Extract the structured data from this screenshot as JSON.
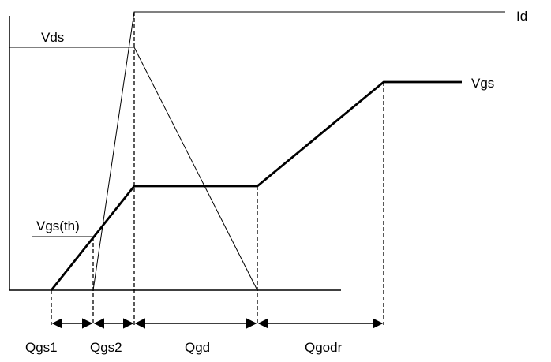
{
  "labels": {
    "vds": "Vds",
    "id": "Id",
    "vgs": "Vgs",
    "vgs_th": "Vgs(th)",
    "qgs1": "Qgs1",
    "qgs2": "Qgs2",
    "qgd": "Qgd",
    "qgodr": "Qgodr"
  }
}
